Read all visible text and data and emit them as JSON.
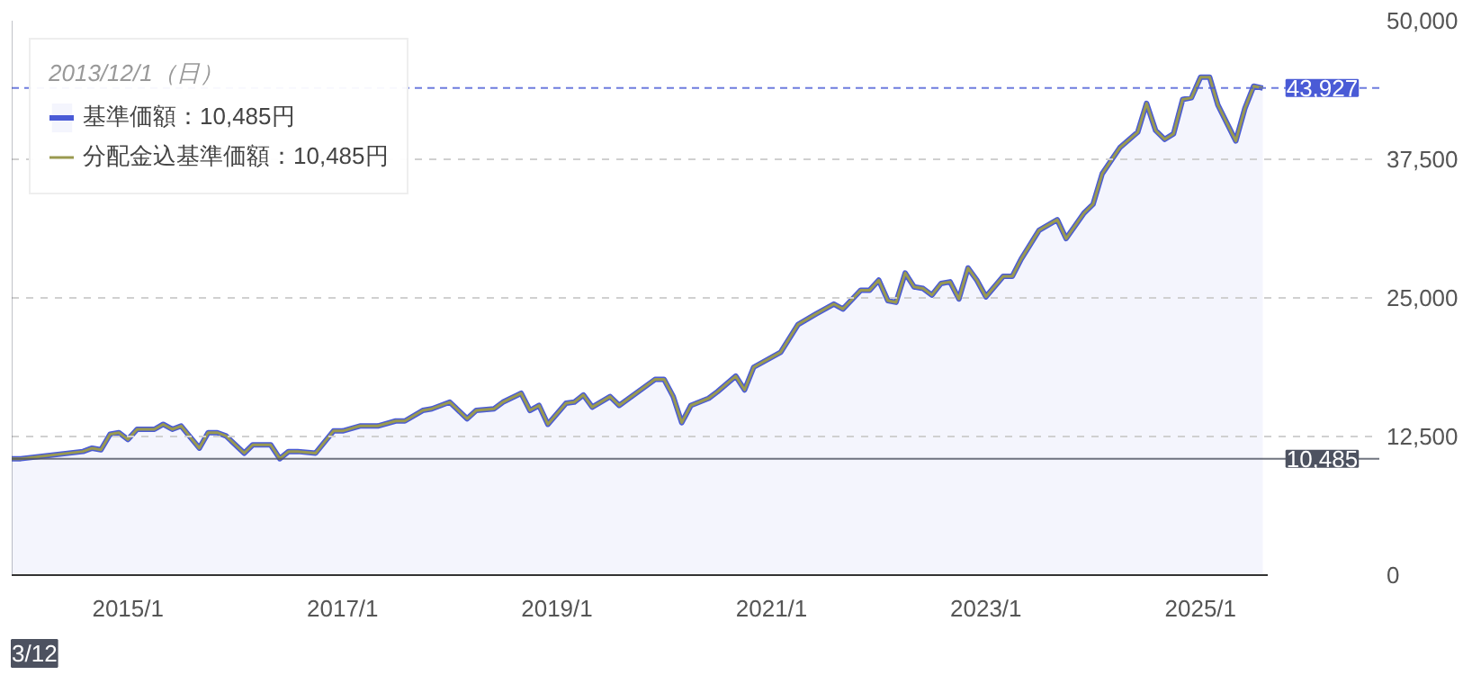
{
  "chart_data": {
    "type": "area",
    "x": [
      "2013-12",
      "2014-01",
      "2014-08",
      "2014-09",
      "2014-10",
      "2014-11",
      "2014-12",
      "2015-01",
      "2015-02",
      "2015-04",
      "2015-05",
      "2015-06",
      "2015-07",
      "2015-09",
      "2015-10",
      "2015-11",
      "2015-12",
      "2016-02",
      "2016-03",
      "2016-05",
      "2016-06",
      "2016-07",
      "2016-08",
      "2016-10",
      "2016-12",
      "2017-01",
      "2017-03",
      "2017-05",
      "2017-07",
      "2017-08",
      "2017-10",
      "2017-11",
      "2018-01",
      "2018-03",
      "2018-04",
      "2018-06",
      "2018-07",
      "2018-09",
      "2018-10",
      "2018-11",
      "2018-12",
      "2019-02",
      "2019-03",
      "2019-04",
      "2019-05",
      "2019-07",
      "2019-08",
      "2019-12",
      "2020-01",
      "2020-02",
      "2020-03",
      "2020-04",
      "2020-06",
      "2020-07",
      "2020-09",
      "2020-10",
      "2020-11",
      "2021-02",
      "2021-04",
      "2021-06",
      "2021-08",
      "2021-09",
      "2021-11",
      "2021-12",
      "2022-01",
      "2022-02",
      "2022-03",
      "2022-04",
      "2022-05",
      "2022-06",
      "2022-07",
      "2022-08",
      "2022-09",
      "2022-10",
      "2022-11",
      "2022-12",
      "2023-01",
      "2023-03",
      "2023-04",
      "2023-05",
      "2023-07",
      "2023-09",
      "2023-10",
      "2023-12",
      "2024-01",
      "2024-02",
      "2024-04",
      "2024-06",
      "2024-07",
      "2024-08",
      "2024-09",
      "2024-10",
      "2024-11",
      "2024-12",
      "2025-01",
      "2025-02",
      "2025-03",
      "2025-05",
      "2025-06",
      "2025-07",
      "2025-08"
    ],
    "series": [
      {
        "name": "基準価額：10,485円",
        "color": "#4a5bd6",
        "values": [
          10485,
          10500,
          11150,
          11450,
          11300,
          12700,
          12850,
          12230,
          13150,
          13150,
          13600,
          13150,
          13450,
          11450,
          12850,
          12850,
          12550,
          11000,
          11750,
          11750,
          10500,
          11150,
          11150,
          11000,
          13000,
          13000,
          13450,
          13450,
          13900,
          13900,
          14850,
          15000,
          15600,
          14100,
          14850,
          15000,
          15600,
          16400,
          14850,
          15300,
          13600,
          15500,
          15600,
          16250,
          15150,
          16100,
          15300,
          17650,
          17650,
          16100,
          13750,
          15300,
          15950,
          16550,
          17950,
          16700,
          18750,
          20100,
          22600,
          23550,
          24450,
          24000,
          25700,
          25700,
          26600,
          24750,
          24600,
          27250,
          26000,
          25850,
          25250,
          26300,
          26450,
          24900,
          27700,
          26600,
          25100,
          26950,
          26950,
          28500,
          31100,
          32050,
          30350,
          32650,
          33450,
          36200,
          38550,
          39950,
          42550,
          40100,
          39300,
          39800,
          42900,
          43050,
          44900,
          44900,
          42400,
          39150,
          42100,
          44100,
          43927
        ]
      },
      {
        "name": "分配金込基準価額：10,485円",
        "type": "line",
        "color": "#9a9a50",
        "values": [
          10485,
          10500,
          11150,
          11450,
          11300,
          12700,
          12850,
          12230,
          13150,
          13150,
          13600,
          13150,
          13450,
          11450,
          12850,
          12850,
          12550,
          11000,
          11750,
          11750,
          10500,
          11150,
          11150,
          11000,
          13000,
          13000,
          13450,
          13450,
          13900,
          13900,
          14850,
          15000,
          15600,
          14100,
          14850,
          15000,
          15600,
          16400,
          14850,
          15300,
          13600,
          15500,
          15600,
          16250,
          15150,
          16100,
          15300,
          17650,
          17650,
          16100,
          13750,
          15300,
          15950,
          16550,
          17950,
          16700,
          18750,
          20100,
          22600,
          23550,
          24450,
          24000,
          25700,
          25700,
          26600,
          24750,
          24600,
          27250,
          26000,
          25850,
          25250,
          26300,
          26450,
          24900,
          27700,
          26600,
          25100,
          26950,
          26950,
          28500,
          31100,
          32050,
          30350,
          32650,
          33450,
          36200,
          38550,
          39950,
          42550,
          40100,
          39300,
          39800,
          42900,
          43050,
          44900,
          44900,
          42400,
          39150,
          42100,
          44100,
          43927
        ]
      }
    ],
    "legend_title": "2013/12/1（日）",
    "legend": "top left",
    "xlim": [
      "2013-12-01",
      "2025-08-20"
    ],
    "xticks": [
      {
        "value": "2015-01",
        "label": "2015/1"
      },
      {
        "value": "2017-01",
        "label": "2017/1"
      },
      {
        "value": "2019-01",
        "label": "2019/1"
      },
      {
        "value": "2021-01",
        "label": "2021/1"
      },
      {
        "value": "2023-01",
        "label": "2023/1"
      },
      {
        "value": "2025-01",
        "label": "2025/1"
      }
    ],
    "ylim": [
      0,
      50000
    ],
    "yticks": [
      {
        "value": 0,
        "label": "0"
      },
      {
        "value": 12500,
        "label": "12,500"
      },
      {
        "value": 25000,
        "label": "25,000"
      },
      {
        "value": 37500,
        "label": "37,500"
      },
      {
        "value": 50000,
        "label": "50,000"
      }
    ],
    "grid": "y",
    "ref_lines": [
      {
        "axis": "y",
        "value": 43927,
        "label": "43,927",
        "color": "#4a5bd6",
        "line_style": "dashed"
      },
      {
        "axis": "y",
        "value": 10485,
        "label": "10,485",
        "color": "#4d5260",
        "line_style": "solid"
      },
      {
        "axis": "x",
        "value": "2013-12-01",
        "label": "3/12",
        "color": "#4d5260",
        "line_style": "solid"
      }
    ]
  }
}
